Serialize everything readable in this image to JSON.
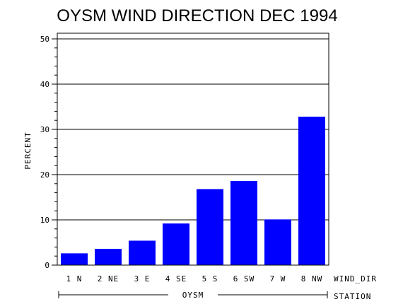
{
  "chart_data": {
    "type": "bar",
    "title": "OYSM WIND DIRECTION DEC 1994",
    "ylabel": "PERCENT",
    "xlabel": "WIND_DIR",
    "group_axis_label": "STATION",
    "group": "OYSM",
    "categories": [
      "1 N",
      "2 NE",
      "3 E",
      "4 SE",
      "5 S",
      "6 SW",
      "7 W",
      "8 NW"
    ],
    "values": [
      2.6,
      3.6,
      5.4,
      9.2,
      16.8,
      18.6,
      10.1,
      32.8
    ],
    "ylim": [
      0,
      50
    ],
    "yticks": [
      "0",
      "10",
      "20",
      "30",
      "40",
      "50"
    ],
    "grid": true,
    "colors": {
      "bar": "#0000ff",
      "axis": "#000000",
      "background": "#ffffff"
    }
  }
}
